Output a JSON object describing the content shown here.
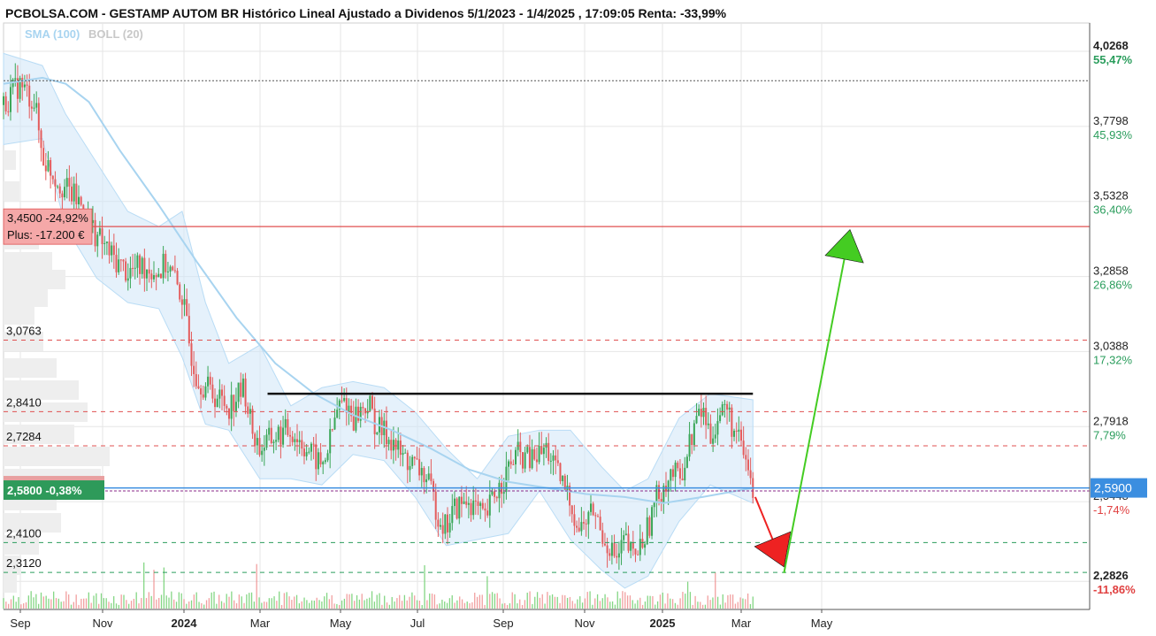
{
  "title": "PCBOLSA.COM - GESTAMP AUTOM BR Histórico Lineal Ajustado a Dividenos 5/1/2023 - 1/4/2025 , 17:09:05 Renta: -33,99%",
  "legend": [
    {
      "label": "SMA (100)",
      "color": "#a8d4f0"
    },
    {
      "label": "BOLL (20)",
      "color": "#c8c8c8"
    }
  ],
  "chart_data": {
    "type": "line",
    "x_tick_labels": [
      "Sep",
      "Nov",
      "2024",
      "Mar",
      "May",
      "Jul",
      "Sep",
      "Nov",
      "2025",
      "Mar",
      "May"
    ],
    "x_ticks_bold": [
      "2024",
      "2025"
    ],
    "ylim": [
      2.19,
      4.12
    ],
    "grid": true,
    "y_ticks": [
      {
        "price": "4,0268",
        "pct": "55,47%",
        "v": 4.0268,
        "bold": true,
        "pct_color": "#2a9d5c"
      },
      {
        "price": "3,7798",
        "pct": "45,93%",
        "v": 3.7798,
        "bold": false,
        "pct_color": "#2a9d5c"
      },
      {
        "price": "3,5328",
        "pct": "36,40%",
        "v": 3.5328,
        "bold": false,
        "pct_color": "#2a9d5c"
      },
      {
        "price": "3,2858",
        "pct": "26,86%",
        "v": 3.2858,
        "bold": false,
        "pct_color": "#2a9d5c"
      },
      {
        "price": "3,0388",
        "pct": "17,32%",
        "v": 3.0388,
        "bold": false,
        "pct_color": "#2a9d5c"
      },
      {
        "price": "2,7918",
        "pct": "7,79%",
        "v": 2.7918,
        "bold": false,
        "pct_color": "#2a9d5c"
      },
      {
        "price": "2,5448",
        "pct": "-1,74%",
        "v": 2.5448,
        "bold": false,
        "pct_color": "#e04040"
      },
      {
        "price": "2,2826",
        "pct": "-11,86%",
        "v": 2.2826,
        "bold": true,
        "pct_color": "#e04040"
      }
    ],
    "current_price": {
      "label": "2,5900",
      "value": 2.59,
      "color": "#3b8ee0"
    },
    "reference_dotted_level": 3.93,
    "red_level": {
      "value": 3.45,
      "label": "3,4500  -24,92%",
      "sublabel": "Plus: -17.200 €"
    },
    "dashed_levels": [
      {
        "value": 3.0763,
        "label": "3,0763",
        "color": "#e05050"
      },
      {
        "value": 2.841,
        "label": "2,8410",
        "color": "#e05050"
      },
      {
        "value": 2.7284,
        "label": "2,7284",
        "color": "#e05050"
      },
      {
        "value": 2.41,
        "label": "2,4100",
        "color": "#2a9d5c"
      },
      {
        "value": 2.312,
        "label": "2,3120",
        "color": "#2a9d5c"
      }
    ],
    "last_price_box": {
      "label": "2,5800  -0,38%",
      "value": 2.58
    },
    "resistance_line": {
      "value": 2.9,
      "t_start": 0.34,
      "t_end": 0.965
    },
    "arrow_up": {
      "t_from": 1.005,
      "v_from": 2.31,
      "t_to": 1.09,
      "v_to": 3.44,
      "color": "#44cc22"
    },
    "arrow_down": {
      "t_from": 0.968,
      "v_from": 2.56,
      "t_to": 1.005,
      "v_to": 2.33,
      "color": "#ee2222"
    },
    "series": [
      {
        "t": 0.0,
        "v": 3.85
      },
      {
        "t": 0.02,
        "v": 3.92
      },
      {
        "t": 0.04,
        "v": 3.86
      },
      {
        "t": 0.05,
        "v": 3.68
      },
      {
        "t": 0.07,
        "v": 3.6
      },
      {
        "t": 0.09,
        "v": 3.55
      },
      {
        "t": 0.1,
        "v": 3.52
      },
      {
        "t": 0.12,
        "v": 3.42
      },
      {
        "t": 0.14,
        "v": 3.35
      },
      {
        "t": 0.16,
        "v": 3.3
      },
      {
        "t": 0.18,
        "v": 3.32
      },
      {
        "t": 0.2,
        "v": 3.3
      },
      {
        "t": 0.21,
        "v": 3.33
      },
      {
        "t": 0.23,
        "v": 3.22
      },
      {
        "t": 0.24,
        "v": 3.05
      },
      {
        "t": 0.25,
        "v": 2.95
      },
      {
        "t": 0.27,
        "v": 2.9
      },
      {
        "t": 0.29,
        "v": 2.86
      },
      {
        "t": 0.31,
        "v": 2.92
      },
      {
        "t": 0.32,
        "v": 2.78
      },
      {
        "t": 0.33,
        "v": 2.72
      },
      {
        "t": 0.35,
        "v": 2.76
      },
      {
        "t": 0.37,
        "v": 2.78
      },
      {
        "t": 0.39,
        "v": 2.72
      },
      {
        "t": 0.41,
        "v": 2.66
      },
      {
        "t": 0.42,
        "v": 2.74
      },
      {
        "t": 0.43,
        "v": 2.85
      },
      {
        "t": 0.44,
        "v": 2.88
      },
      {
        "t": 0.45,
        "v": 2.82
      },
      {
        "t": 0.47,
        "v": 2.87
      },
      {
        "t": 0.48,
        "v": 2.79
      },
      {
        "t": 0.5,
        "v": 2.75
      },
      {
        "t": 0.51,
        "v": 2.7
      },
      {
        "t": 0.53,
        "v": 2.66
      },
      {
        "t": 0.54,
        "v": 2.64
      },
      {
        "t": 0.55,
        "v": 2.58
      },
      {
        "t": 0.56,
        "v": 2.5
      },
      {
        "t": 0.57,
        "v": 2.46
      },
      {
        "t": 0.58,
        "v": 2.52
      },
      {
        "t": 0.6,
        "v": 2.55
      },
      {
        "t": 0.62,
        "v": 2.48
      },
      {
        "t": 0.63,
        "v": 2.56
      },
      {
        "t": 0.64,
        "v": 2.6
      },
      {
        "t": 0.65,
        "v": 2.65
      },
      {
        "t": 0.66,
        "v": 2.7
      },
      {
        "t": 0.68,
        "v": 2.68
      },
      {
        "t": 0.7,
        "v": 2.72
      },
      {
        "t": 0.71,
        "v": 2.65
      },
      {
        "t": 0.72,
        "v": 2.6
      },
      {
        "t": 0.73,
        "v": 2.55
      },
      {
        "t": 0.74,
        "v": 2.45
      },
      {
        "t": 0.75,
        "v": 2.48
      },
      {
        "t": 0.76,
        "v": 2.52
      },
      {
        "t": 0.77,
        "v": 2.44
      },
      {
        "t": 0.78,
        "v": 2.4
      },
      {
        "t": 0.79,
        "v": 2.35
      },
      {
        "t": 0.8,
        "v": 2.42
      },
      {
        "t": 0.81,
        "v": 2.36
      },
      {
        "t": 0.82,
        "v": 2.4
      },
      {
        "t": 0.83,
        "v": 2.46
      },
      {
        "t": 0.84,
        "v": 2.55
      },
      {
        "t": 0.85,
        "v": 2.6
      },
      {
        "t": 0.86,
        "v": 2.64
      },
      {
        "t": 0.87,
        "v": 2.62
      },
      {
        "t": 0.88,
        "v": 2.7
      },
      {
        "t": 0.89,
        "v": 2.8
      },
      {
        "t": 0.9,
        "v": 2.85
      },
      {
        "t": 0.91,
        "v": 2.76
      },
      {
        "t": 0.92,
        "v": 2.82
      },
      {
        "t": 0.93,
        "v": 2.86
      },
      {
        "t": 0.94,
        "v": 2.78
      },
      {
        "t": 0.95,
        "v": 2.72
      },
      {
        "t": 0.96,
        "v": 2.64
      },
      {
        "t": 0.965,
        "v": 2.58
      }
    ],
    "sma_series": [
      {
        "t": 0.0,
        "v": 3.92
      },
      {
        "t": 0.05,
        "v": 3.94
      },
      {
        "t": 0.08,
        "v": 3.92
      },
      {
        "t": 0.11,
        "v": 3.86
      },
      {
        "t": 0.15,
        "v": 3.7
      },
      {
        "t": 0.2,
        "v": 3.52
      },
      {
        "t": 0.25,
        "v": 3.33
      },
      {
        "t": 0.3,
        "v": 3.15
      },
      {
        "t": 0.35,
        "v": 3.0
      },
      {
        "t": 0.4,
        "v": 2.9
      },
      {
        "t": 0.45,
        "v": 2.83
      },
      {
        "t": 0.5,
        "v": 2.78
      },
      {
        "t": 0.55,
        "v": 2.72
      },
      {
        "t": 0.6,
        "v": 2.65
      },
      {
        "t": 0.65,
        "v": 2.61
      },
      {
        "t": 0.7,
        "v": 2.59
      },
      {
        "t": 0.75,
        "v": 2.57
      },
      {
        "t": 0.8,
        "v": 2.56
      },
      {
        "t": 0.85,
        "v": 2.54
      },
      {
        "t": 0.9,
        "v": 2.56
      },
      {
        "t": 0.965,
        "v": 2.59
      }
    ],
    "boll_band": [
      {
        "t": 0.0,
        "lo": 3.72,
        "hi": 4.02
      },
      {
        "t": 0.05,
        "lo": 3.74,
        "hi": 3.98
      },
      {
        "t": 0.08,
        "lo": 3.45,
        "hi": 3.82
      },
      {
        "t": 0.12,
        "lo": 3.28,
        "hi": 3.66
      },
      {
        "t": 0.16,
        "lo": 3.2,
        "hi": 3.5
      },
      {
        "t": 0.2,
        "lo": 3.18,
        "hi": 3.45
      },
      {
        "t": 0.23,
        "lo": 3.02,
        "hi": 3.5
      },
      {
        "t": 0.26,
        "lo": 2.8,
        "hi": 3.2
      },
      {
        "t": 0.29,
        "lo": 2.78,
        "hi": 3.0
      },
      {
        "t": 0.33,
        "lo": 2.62,
        "hi": 3.06
      },
      {
        "t": 0.37,
        "lo": 2.62,
        "hi": 2.86
      },
      {
        "t": 0.41,
        "lo": 2.6,
        "hi": 2.92
      },
      {
        "t": 0.45,
        "lo": 2.7,
        "hi": 2.94
      },
      {
        "t": 0.49,
        "lo": 2.68,
        "hi": 2.92
      },
      {
        "t": 0.53,
        "lo": 2.56,
        "hi": 2.84
      },
      {
        "t": 0.57,
        "lo": 2.4,
        "hi": 2.72
      },
      {
        "t": 0.61,
        "lo": 2.42,
        "hi": 2.62
      },
      {
        "t": 0.65,
        "lo": 2.44,
        "hi": 2.76
      },
      {
        "t": 0.69,
        "lo": 2.58,
        "hi": 2.78
      },
      {
        "t": 0.73,
        "lo": 2.42,
        "hi": 2.78
      },
      {
        "t": 0.77,
        "lo": 2.32,
        "hi": 2.66
      },
      {
        "t": 0.8,
        "lo": 2.26,
        "hi": 2.58
      },
      {
        "t": 0.83,
        "lo": 2.3,
        "hi": 2.62
      },
      {
        "t": 0.87,
        "lo": 2.48,
        "hi": 2.82
      },
      {
        "t": 0.91,
        "lo": 2.6,
        "hi": 2.9
      },
      {
        "t": 0.965,
        "lo": 2.54,
        "hi": 2.88
      }
    ]
  }
}
